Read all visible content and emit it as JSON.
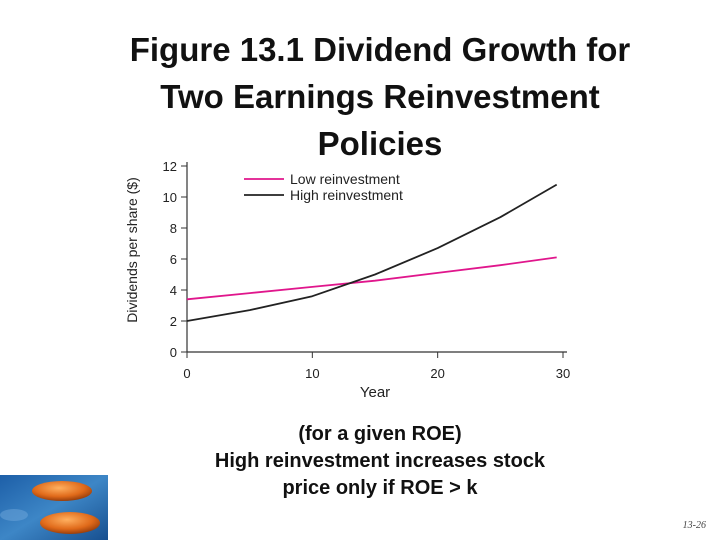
{
  "slide": {
    "title_lines": [
      "Figure 13.1 Dividend Growth for",
      "Two Earnings Reinvestment",
      "Policies"
    ],
    "caption_lines": [
      "(for a given ROE)",
      "High reinvestment increases stock",
      "price only if ROE > k"
    ],
    "page_number": "13-26"
  },
  "chart_data": {
    "type": "line",
    "title": "",
    "xlabel": "Year",
    "ylabel": "Dividends per share ($)",
    "xlim": [
      0,
      30
    ],
    "ylim": [
      0,
      12
    ],
    "x_ticks": [
      0,
      10,
      20,
      30
    ],
    "y_ticks": [
      0,
      2,
      4,
      6,
      8,
      10,
      12
    ],
    "grid": false,
    "legend_position": "top-left",
    "series": [
      {
        "name": "Low reinvestment",
        "color": "#e0168c",
        "x": [
          0,
          5,
          10,
          15,
          20,
          25,
          29.5
        ],
        "y": [
          3.4,
          3.8,
          4.2,
          4.6,
          5.1,
          5.6,
          6.1
        ]
      },
      {
        "name": "High reinvestment",
        "color": "#222222",
        "x": [
          0,
          5,
          10,
          15,
          20,
          25,
          29.5
        ],
        "y": [
          2.0,
          2.7,
          3.6,
          5.0,
          6.7,
          8.7,
          10.8
        ]
      }
    ]
  }
}
